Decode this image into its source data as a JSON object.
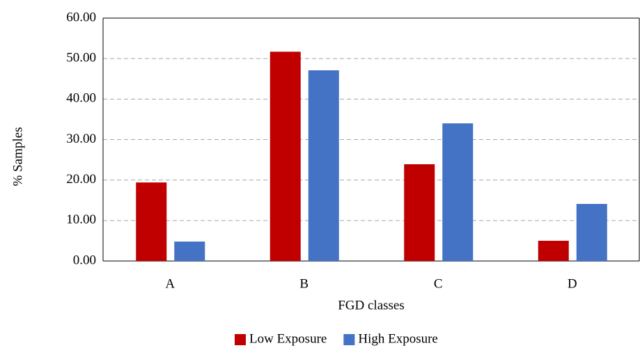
{
  "chart_data": {
    "type": "bar",
    "x_label": "FGD classes",
    "y_label": "% Samples",
    "categories": [
      "A",
      "B",
      "C",
      "D"
    ],
    "series": [
      {
        "name": "Low Exposure",
        "color": "#c00000",
        "values": [
          19.4,
          51.7,
          23.9,
          5.0
        ]
      },
      {
        "name": "High Exposure",
        "color": "#4472c4",
        "values": [
          4.8,
          47.1,
          34.0,
          14.1
        ]
      }
    ],
    "ylim": [
      0,
      60
    ],
    "yticks": [
      {
        "value": 0,
        "label": "0.00"
      },
      {
        "value": 10,
        "label": "10.00"
      },
      {
        "value": 20,
        "label": "20.00"
      },
      {
        "value": 30,
        "label": "30.00"
      },
      {
        "value": 40,
        "label": "40.00"
      },
      {
        "value": 50,
        "label": "50.00"
      },
      {
        "value": 60,
        "label": "60.00"
      }
    ],
    "grid": true,
    "legend": "bottom"
  }
}
